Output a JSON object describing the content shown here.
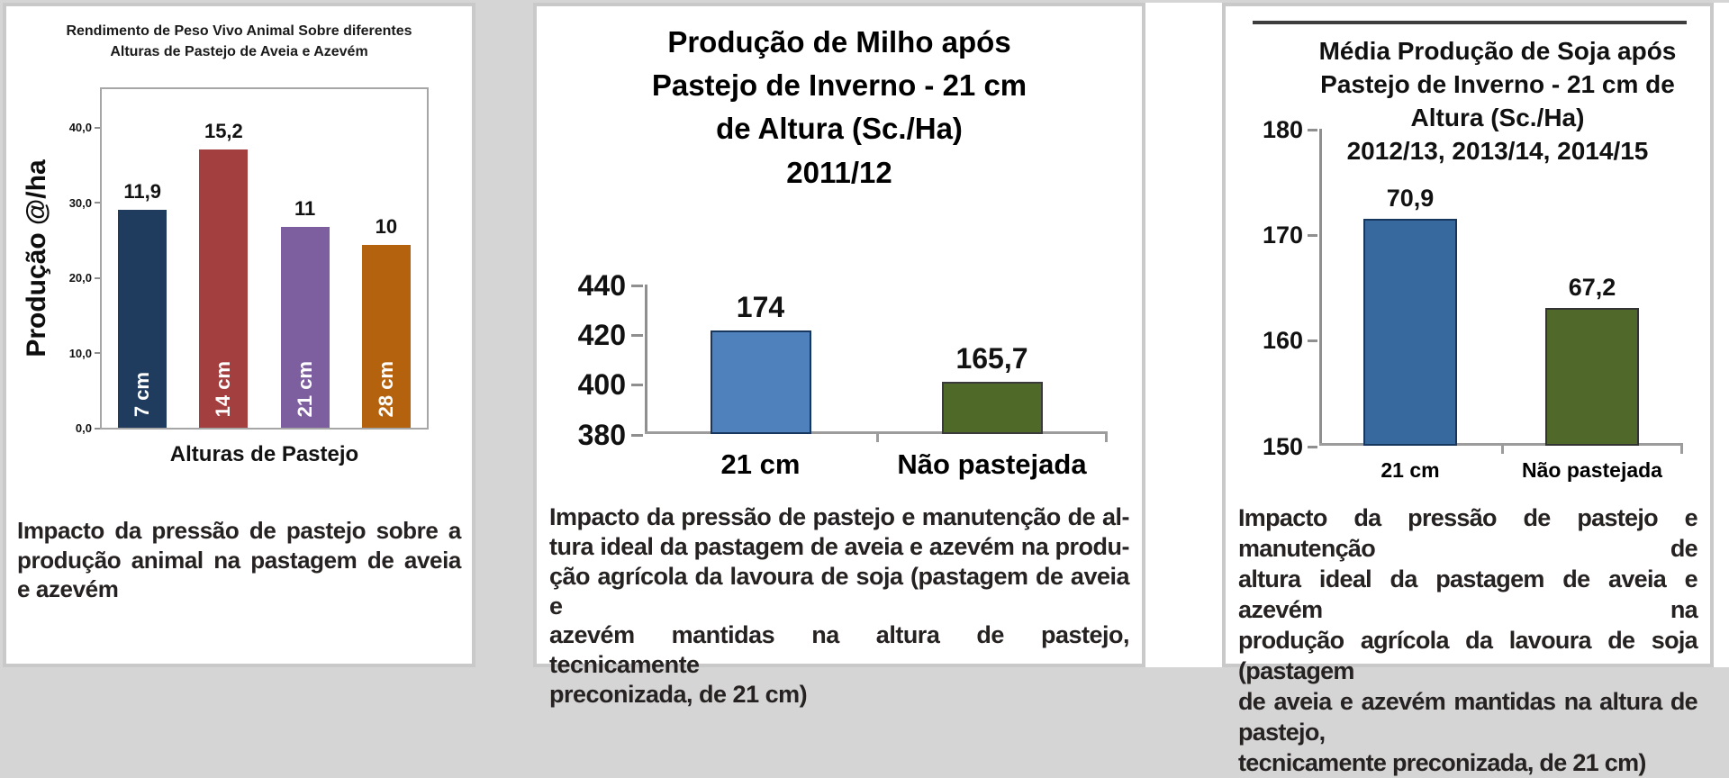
{
  "colors": {
    "page_bg": "#d5d5d5",
    "panel_bg": "#ffffff",
    "panel_border": "#c9c9c9",
    "caption_text": "#262221",
    "axis_line": "#8f8f8f",
    "top_rule": "#3d3d3d"
  },
  "chart_data": [
    {
      "type": "bar",
      "title": "Rendimento de Peso Vivo Animal Sobre diferentes Alturas de Pastejo de Aveia e Azevém",
      "title_lines": [
        "Rendimento de Peso Vivo Animal Sobre diferentes",
        "Alturas de Pastejo de Aveia e Azevém"
      ],
      "xlabel": "Alturas de Pastejo",
      "ylabel": "Produção @/ha",
      "categories": [
        "7 cm",
        "14 cm",
        "21 cm",
        "28 cm"
      ],
      "values": [
        11.9,
        15.2,
        11,
        10
      ],
      "value_labels": [
        "11,9",
        "15,2",
        "11",
        "10"
      ],
      "bar_top_axis_units": [
        29,
        37,
        26.7,
        24.3
      ],
      "axis": {
        "min": 0,
        "max": 45,
        "ticks": [
          {
            "v": 0,
            "label": "0,0"
          },
          {
            "v": 10,
            "label": "10,0"
          },
          {
            "v": 20,
            "label": "20,0"
          },
          {
            "v": 30,
            "label": "30,0"
          },
          {
            "v": 40,
            "label": "40,0"
          }
        ]
      },
      "bar_colors": [
        "#1f3b5d",
        "#a43f3f",
        "#7d5fa0",
        "#b5620f"
      ],
      "grid": false,
      "legend": "none",
      "category_label_style": "white, bold, rotated 90° inside bar bottom"
    },
    {
      "type": "bar",
      "title": "Produção de Milho após Pastejo de Inverno - 21 cm de Altura (Sc./Ha) 2011/12",
      "title_lines": [
        "Produção de Milho após",
        "Pastejo de Inverno - 21 cm",
        "de Altura (Sc./Ha)",
        "2011/12"
      ],
      "xlabel": "",
      "ylabel": "",
      "categories": [
        "21 cm",
        "Não pastejada"
      ],
      "values": [
        174,
        165.7
      ],
      "value_labels": [
        "174",
        "165,7"
      ],
      "bar_top_axis_units": [
        421.5,
        401
      ],
      "axis": {
        "min": 380,
        "max": 440,
        "ticks": [
          {
            "v": 380,
            "label": "380"
          },
          {
            "v": 400,
            "label": "400"
          },
          {
            "v": 420,
            "label": "420"
          },
          {
            "v": 440,
            "label": "440"
          }
        ]
      },
      "bar_colors": [
        "#4f81bd",
        "#4f6a28"
      ],
      "bar_borders": [
        "#17375e",
        "#3a3a3a"
      ],
      "grid": false,
      "legend": "none"
    },
    {
      "type": "bar",
      "title": "Média Produção de Soja após Pastejo de Inverno - 21 cm de Altura (Sc./Ha) 2012/13, 2013/14, 2014/15",
      "title_lines": [
        "Média Produção de Soja após",
        "Pastejo de Inverno - 21 cm de",
        "Altura (Sc./Ha)",
        "2012/13, 2013/14, 2014/15"
      ],
      "xlabel": "",
      "ylabel": "",
      "categories": [
        "21 cm",
        "Não pastejada"
      ],
      "values": [
        70.9,
        67.2
      ],
      "value_labels": [
        "70,9",
        "67,2"
      ],
      "bar_top_axis_units": [
        171.5,
        163
      ],
      "axis": {
        "min": 150,
        "max": 180,
        "ticks": [
          {
            "v": 150,
            "label": "150"
          },
          {
            "v": 160,
            "label": "160"
          },
          {
            "v": 170,
            "label": "170"
          },
          {
            "v": 180,
            "label": "180"
          }
        ]
      },
      "bar_colors": [
        "#37699e",
        "#50682a"
      ],
      "bar_borders": [
        "#17375e",
        "#333333"
      ],
      "grid": false,
      "legend": "none"
    }
  ],
  "panels": [
    {
      "caption": "Impacto da pressão de pastejo sobre a produção animal na pastagem de aveia e azevém",
      "caption_lines": [
        "Impacto da pressão de pastejo sobre a",
        "produção animal na pastagem de aveia",
        "e azevém"
      ]
    },
    {
      "caption": "Impacto da pressão de pastejo e manutenção de altura ideal da pastagem de aveia e azevém na produção agrícola da lavoura de soja (pastagem de aveia e azevém mantidas na altura de pastejo, tecnicamente preconizada, de 21 cm)",
      "caption_lines": [
        "Impacto da pressão de pastejo e manutenção de al-",
        "tura ideal da pastagem de aveia e azevém na produ-",
        "ção agrícola da lavoura de soja (pastagem de aveia e",
        "azevém mantidas na altura de pastejo, tecnicamente",
        "preconizada, de 21 cm)"
      ]
    },
    {
      "caption": "Impacto da pressão de pastejo e manutenção de altura ideal da pastagem de aveia e azevém na produção agrícola da lavoura de soja (pastagem de aveia e azevém mantidas na altura de pastejo, tecnicamente preconizada, de 21 cm)",
      "caption_lines": [
        "Impacto da pressão de pastejo e manutenção de",
        "altura ideal da pastagem de aveia e azevém na",
        "produção agrícola da lavoura de soja (pastagem",
        "de aveia e azevém mantidas na altura de pastejo,",
        "tecnicamente preconizada, de 21 cm)"
      ]
    }
  ]
}
